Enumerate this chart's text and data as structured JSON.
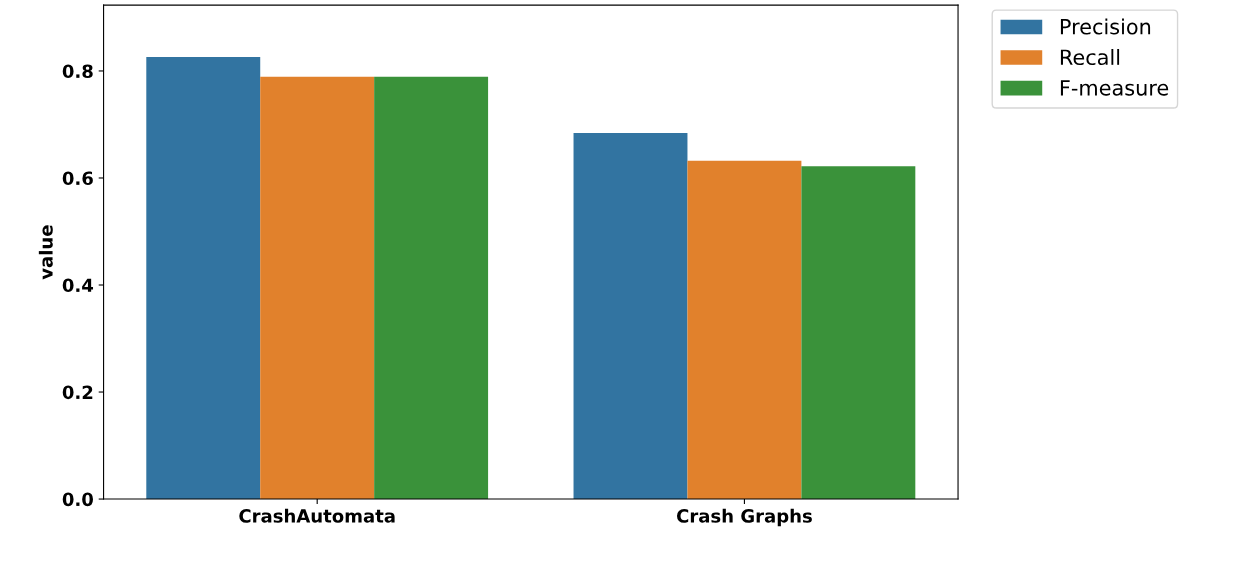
{
  "chart_data": {
    "type": "bar",
    "categories": [
      "CrashAutomata",
      "Crash Graphs"
    ],
    "ylabel": "value",
    "series": [
      {
        "name": "Precision",
        "color": "#3274a1",
        "values": [
          0.826,
          0.684
        ]
      },
      {
        "name": "Recall",
        "color": "#e1812c",
        "values": [
          0.789,
          0.632
        ]
      },
      {
        "name": "F-measure",
        "color": "#3a923a",
        "values": [
          0.789,
          0.622
        ]
      }
    ],
    "ylim": [
      0,
      0.923
    ],
    "yticks": [
      {
        "value": 0,
        "label": "0.0"
      },
      0.2,
      0.4,
      0.6,
      0.8
    ],
    "legend": "top right"
  }
}
